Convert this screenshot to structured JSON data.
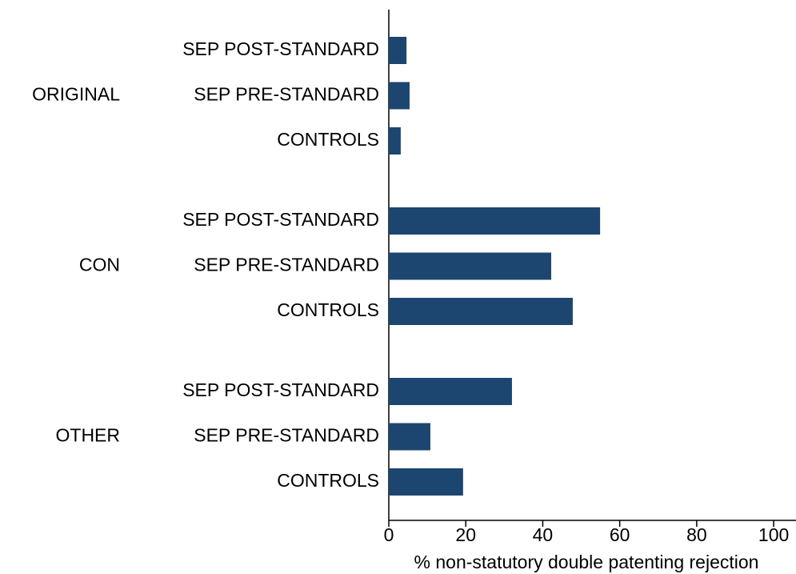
{
  "chart_data": {
    "type": "bar",
    "orientation": "horizontal",
    "x_label": "% non-statutory double patenting rejection",
    "color": "#1c4670",
    "groups": [
      {
        "name": "ORIGINAL",
        "categories": [
          "SEP POST-STANDARD",
          "SEP PRE-STANDARD",
          "CONTROLS"
        ],
        "values": [
          4.6,
          5.4,
          3.1
        ]
      },
      {
        "name": "CON",
        "categories": [
          "SEP POST-STANDARD",
          "SEP PRE-STANDARD",
          "CONTROLS"
        ],
        "values": [
          54.9,
          42.2,
          47.8
        ]
      },
      {
        "name": "OTHER",
        "categories": [
          "SEP POST-STANDARD",
          "SEP PRE-STANDARD",
          "CONTROLS"
        ],
        "values": [
          32.0,
          10.8,
          19.3
        ]
      }
    ],
    "xlim": [
      0,
      105.8
    ],
    "xticks": [
      0,
      20,
      40,
      60,
      80,
      100
    ]
  }
}
